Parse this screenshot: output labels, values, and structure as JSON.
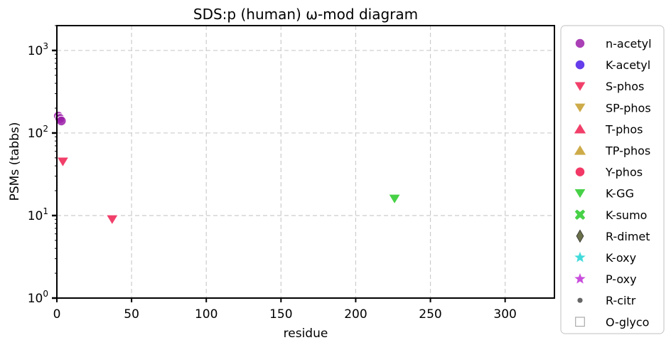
{
  "chart_data": {
    "type": "scatter",
    "title": "SDS:p (human) ω-mod diagram",
    "xlabel": "residue",
    "ylabel": "PSMs (tabbs)",
    "xlim": [
      0,
      333
    ],
    "ylim": [
      1,
      2000
    ],
    "yscale": "log",
    "grid": true,
    "legend_position": "outside-right",
    "x_ticks": [
      "0",
      "50",
      "100",
      "150",
      "200",
      "250",
      "300"
    ],
    "x_tick_values": [
      0,
      50,
      100,
      150,
      200,
      250,
      300
    ],
    "y_tick_values": [
      1,
      10,
      100,
      1000
    ],
    "y_ticks": [
      {
        "base": "10",
        "exp": "0"
      },
      {
        "base": "10",
        "exp": "1"
      },
      {
        "base": "10",
        "exp": "2"
      },
      {
        "base": "10",
        "exp": "3"
      }
    ],
    "series": [
      {
        "name": "n-acetyl",
        "marker": "circle",
        "color": "#9b1fa8",
        "points": [
          [
            1,
            160
          ],
          [
            2,
            150
          ],
          [
            3,
            140
          ]
        ]
      },
      {
        "name": "K-acetyl",
        "marker": "circle",
        "color": "#4a1be8",
        "points": []
      },
      {
        "name": "S-phos",
        "marker": "triangle-down",
        "color": "#f02a5a",
        "points": [
          [
            4,
            45
          ],
          [
            37,
            9
          ]
        ]
      },
      {
        "name": "SP-phos",
        "marker": "triangle-down",
        "color": "#c9a235",
        "points": []
      },
      {
        "name": "T-phos",
        "marker": "triangle-up",
        "color": "#f02a5a",
        "points": []
      },
      {
        "name": "TP-phos",
        "marker": "triangle-up",
        "color": "#c9a235",
        "points": []
      },
      {
        "name": "Y-phos",
        "marker": "circle",
        "color": "#f0154b",
        "points": []
      },
      {
        "name": "K-GG",
        "marker": "triangle-down",
        "color": "#33cc33",
        "points": [
          [
            226,
            16
          ]
        ]
      },
      {
        "name": "K-sumo",
        "marker": "x-filled",
        "color": "#33cc33",
        "points": []
      },
      {
        "name": "R-dimet",
        "marker": "thin-diamond",
        "color": "#5a6035",
        "points": []
      },
      {
        "name": "K-oxy",
        "marker": "star",
        "color": "#2ed6d6",
        "points": []
      },
      {
        "name": "P-oxy",
        "marker": "star",
        "color": "#c23ad8",
        "points": []
      },
      {
        "name": "R-citr",
        "marker": "dot",
        "color": "#666666",
        "points": []
      },
      {
        "name": "O-glyco",
        "marker": "square-open",
        "color": "#aaaaaa",
        "points": []
      }
    ]
  }
}
